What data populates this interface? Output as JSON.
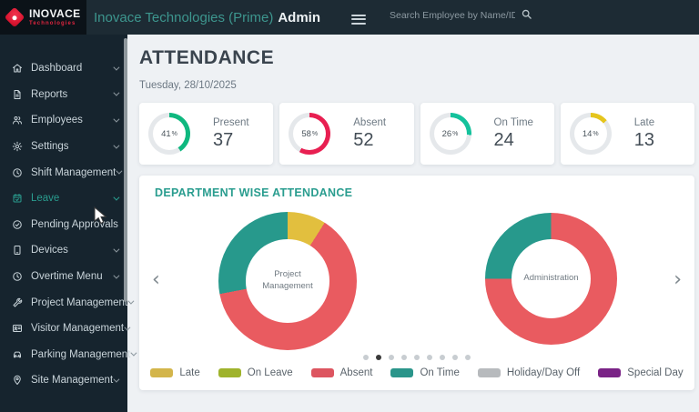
{
  "header": {
    "brand": "INOVACE",
    "brand_sub": "Technologies",
    "app_title": "Inovace Technologies (Prime)",
    "app_title_role": "Admin",
    "search_placeholder": "Search Employee by Name/ID"
  },
  "sidebar": {
    "items": [
      {
        "label": "Dashboard",
        "icon": "home",
        "chevron": true,
        "active": false
      },
      {
        "label": "Reports",
        "icon": "reports",
        "chevron": true,
        "active": false
      },
      {
        "label": "Employees",
        "icon": "employees",
        "chevron": true,
        "active": false
      },
      {
        "label": "Settings",
        "icon": "settings",
        "chevron": true,
        "active": false
      },
      {
        "label": "Shift Management",
        "icon": "shift",
        "chevron": true,
        "active": false
      },
      {
        "label": "Leave",
        "icon": "leave",
        "chevron": true,
        "active": true
      },
      {
        "label": "Pending Approvals",
        "icon": "approvals",
        "chevron": false,
        "active": false
      },
      {
        "label": "Devices",
        "icon": "devices",
        "chevron": true,
        "active": false
      },
      {
        "label": "Overtime Menu",
        "icon": "overtime",
        "chevron": true,
        "active": false
      },
      {
        "label": "Project Management",
        "icon": "project",
        "chevron": true,
        "active": false
      },
      {
        "label": "Visitor Management",
        "icon": "visitor",
        "chevron": true,
        "active": false
      },
      {
        "label": "Parking Management",
        "icon": "parking",
        "chevron": true,
        "active": false
      },
      {
        "label": "Site Management",
        "icon": "site",
        "chevron": true,
        "active": false
      }
    ]
  },
  "main": {
    "page_title": "ATTENDANCE",
    "date": "Tuesday, 28/10/2025",
    "stats": [
      {
        "label": "Present",
        "value": "37",
        "percent": 41,
        "unit": "%",
        "color": "#0fb87f"
      },
      {
        "label": "Absent",
        "value": "52",
        "percent": 58,
        "unit": "%",
        "color": "#e81f51"
      },
      {
        "label": "On Time",
        "value": "24",
        "percent": 26,
        "unit": "%",
        "color": "#14c29c"
      },
      {
        "label": "Late",
        "value": "13",
        "percent": 14,
        "unit": "%",
        "color": "#e5c51d"
      }
    ],
    "section_title": "DEPARTMENT WISE ATTENDANCE",
    "carousel": {
      "dot_count": 9,
      "active_index": 1,
      "prev": "‹",
      "next": "›"
    },
    "legend": [
      {
        "label": "Late",
        "color": "#d3b54b"
      },
      {
        "label": "On Leave",
        "color": "#9fb32c"
      },
      {
        "label": "Absent",
        "color": "#dd5560"
      },
      {
        "label": "On Time",
        "color": "#2a958a"
      },
      {
        "label": "Holiday/Day Off",
        "color": "#b7babd"
      },
      {
        "label": "Special Day",
        "color": "#7a2386"
      }
    ]
  },
  "chart_data": [
    {
      "type": "pie",
      "title": "Project Management",
      "segments": [
        {
          "label": "Late",
          "value": 9,
          "color": "#e2bf3e"
        },
        {
          "label": "Absent",
          "value": 63,
          "color": "#e95b60"
        },
        {
          "label": "On Time",
          "value": 28,
          "color": "#27998c"
        }
      ]
    },
    {
      "type": "pie",
      "title": "Administration",
      "segments": [
        {
          "label": "Absent",
          "value": 75,
          "color": "#e95b60"
        },
        {
          "label": "On Time",
          "value": 25,
          "color": "#27998c"
        }
      ]
    }
  ]
}
